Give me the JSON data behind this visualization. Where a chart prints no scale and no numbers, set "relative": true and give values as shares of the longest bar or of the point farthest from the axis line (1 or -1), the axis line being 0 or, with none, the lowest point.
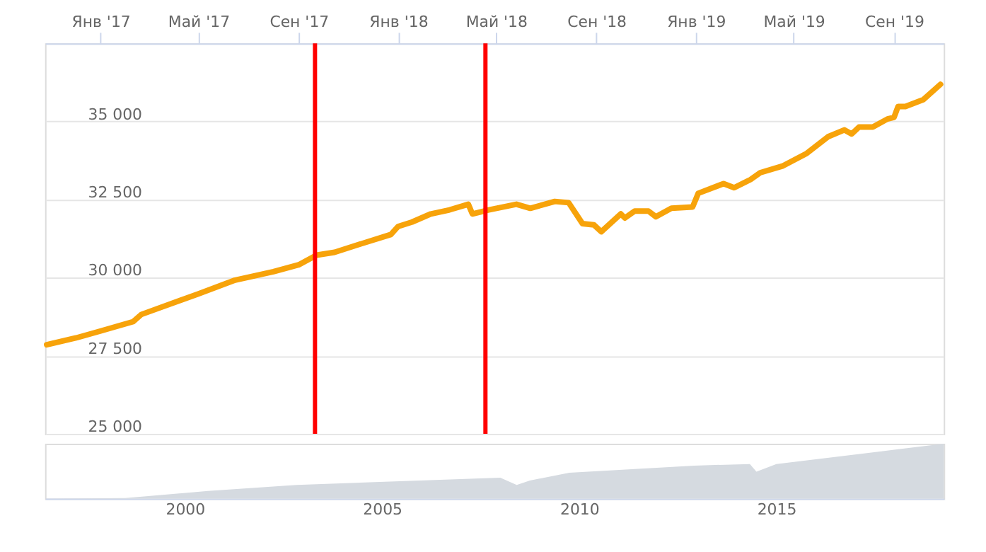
{
  "chart_data": [
    {
      "type": "line",
      "x": [
        "2016-10-27",
        "2016-12-02",
        "2017-01-01",
        "2017-02-10",
        "2017-02-20",
        "2017-05-01",
        "2017-06-15",
        "2017-08-01",
        "2017-09-01",
        "2017-09-23",
        "2017-10-15",
        "2017-11-15",
        "2017-12-23",
        "2018-01-01",
        "2018-01-18",
        "2018-02-10",
        "2018-03-05",
        "2018-03-28",
        "2018-04-02",
        "2018-04-22",
        "2018-05-26",
        "2018-06-12",
        "2018-07-12",
        "2018-07-29",
        "2018-08-15",
        "2018-08-29",
        "2018-09-07",
        "2018-10-01",
        "2018-10-06",
        "2018-10-18",
        "2018-11-04",
        "2018-11-13",
        "2018-12-02",
        "2018-12-28",
        "2019-01-04",
        "2019-02-04",
        "2019-02-17",
        "2019-03-09",
        "2019-03-21",
        "2019-04-18",
        "2019-05-17",
        "2019-06-12",
        "2019-07-02",
        "2019-07-11",
        "2019-07-20",
        "2019-08-06",
        "2019-08-24",
        "2019-09-01",
        "2019-09-06",
        "2019-09-15",
        "2019-10-07",
        "2019-10-28"
      ],
      "series": [
        {
          "color": "#f7a30a",
          "values": [
            27850,
            28070,
            28290,
            28590,
            28820,
            29480,
            29920,
            30190,
            30410,
            30720,
            30810,
            31070,
            31380,
            31640,
            31780,
            32040,
            32170,
            32350,
            32040,
            32170,
            32350,
            32220,
            32440,
            32400,
            31730,
            31690,
            31470,
            32040,
            31910,
            32130,
            32130,
            31950,
            32220,
            32260,
            32700,
            33010,
            32880,
            33140,
            33360,
            33580,
            33980,
            34510,
            34730,
            34600,
            34820,
            34820,
            35080,
            35130,
            35480,
            35480,
            35700,
            36190
          ]
        }
      ],
      "xlim": [
        "2016-10-25",
        "2019-11-01"
      ],
      "xticks": [
        {
          "value": "2017-01-01",
          "label": "Янв '17"
        },
        {
          "value": "2017-05-01",
          "label": "Май '17"
        },
        {
          "value": "2017-09-01",
          "label": "Сен '17"
        },
        {
          "value": "2018-01-01",
          "label": "Янв '18"
        },
        {
          "value": "2018-05-01",
          "label": "Май '18"
        },
        {
          "value": "2018-09-01",
          "label": "Сен '18"
        },
        {
          "value": "2019-01-01",
          "label": "Янв '19"
        },
        {
          "value": "2019-05-01",
          "label": "Май '19"
        },
        {
          "value": "2019-09-01",
          "label": "Сен '19"
        }
      ],
      "ylim": [
        25000,
        37500
      ],
      "yticks": [
        {
          "value": 25000,
          "label": "25 000"
        },
        {
          "value": 27500,
          "label": "27 500"
        },
        {
          "value": 30000,
          "label": "30 000"
        },
        {
          "value": 32500,
          "label": "32 500"
        },
        {
          "value": 35000,
          "label": "35 000"
        }
      ],
      "ref_lines": [
        {
          "axis": "x",
          "value": "2017-09-21",
          "color": "#ff0000"
        },
        {
          "axis": "x",
          "value": "2018-04-18",
          "color": "#ff0000"
        }
      ],
      "grid": "y",
      "line_style": "solid",
      "marker": "none"
    },
    {
      "type": "area",
      "relative": true,
      "x": [
        "1996-06-15",
        "1998-07-01",
        "2000-08-01",
        "2002-11-01",
        "2008-01-01",
        "2008-06-01",
        "2008-10-01",
        "2009-10-01",
        "2012-12-01",
        "2014-05-01",
        "2014-07-01",
        "2015-01-01",
        "2017-09-01",
        "2019-04-01"
      ],
      "series": [
        {
          "color": "#d5dae0",
          "values": [
            0,
            0.01,
            0.14,
            0.25,
            0.38,
            0.25,
            0.33,
            0.47,
            0.6,
            0.63,
            0.49,
            0.63,
            0.86,
            1
          ]
        }
      ],
      "xlim": [
        "1996-06-15",
        "2019-04-01"
      ],
      "xticks": [
        {
          "value": "2000-01-01",
          "label": "2000"
        },
        {
          "value": "2005-01-01",
          "label": "2005"
        },
        {
          "value": "2010-01-01",
          "label": "2010"
        },
        {
          "value": "2015-01-01",
          "label": "2015"
        }
      ],
      "tick_labels": "x"
    }
  ]
}
